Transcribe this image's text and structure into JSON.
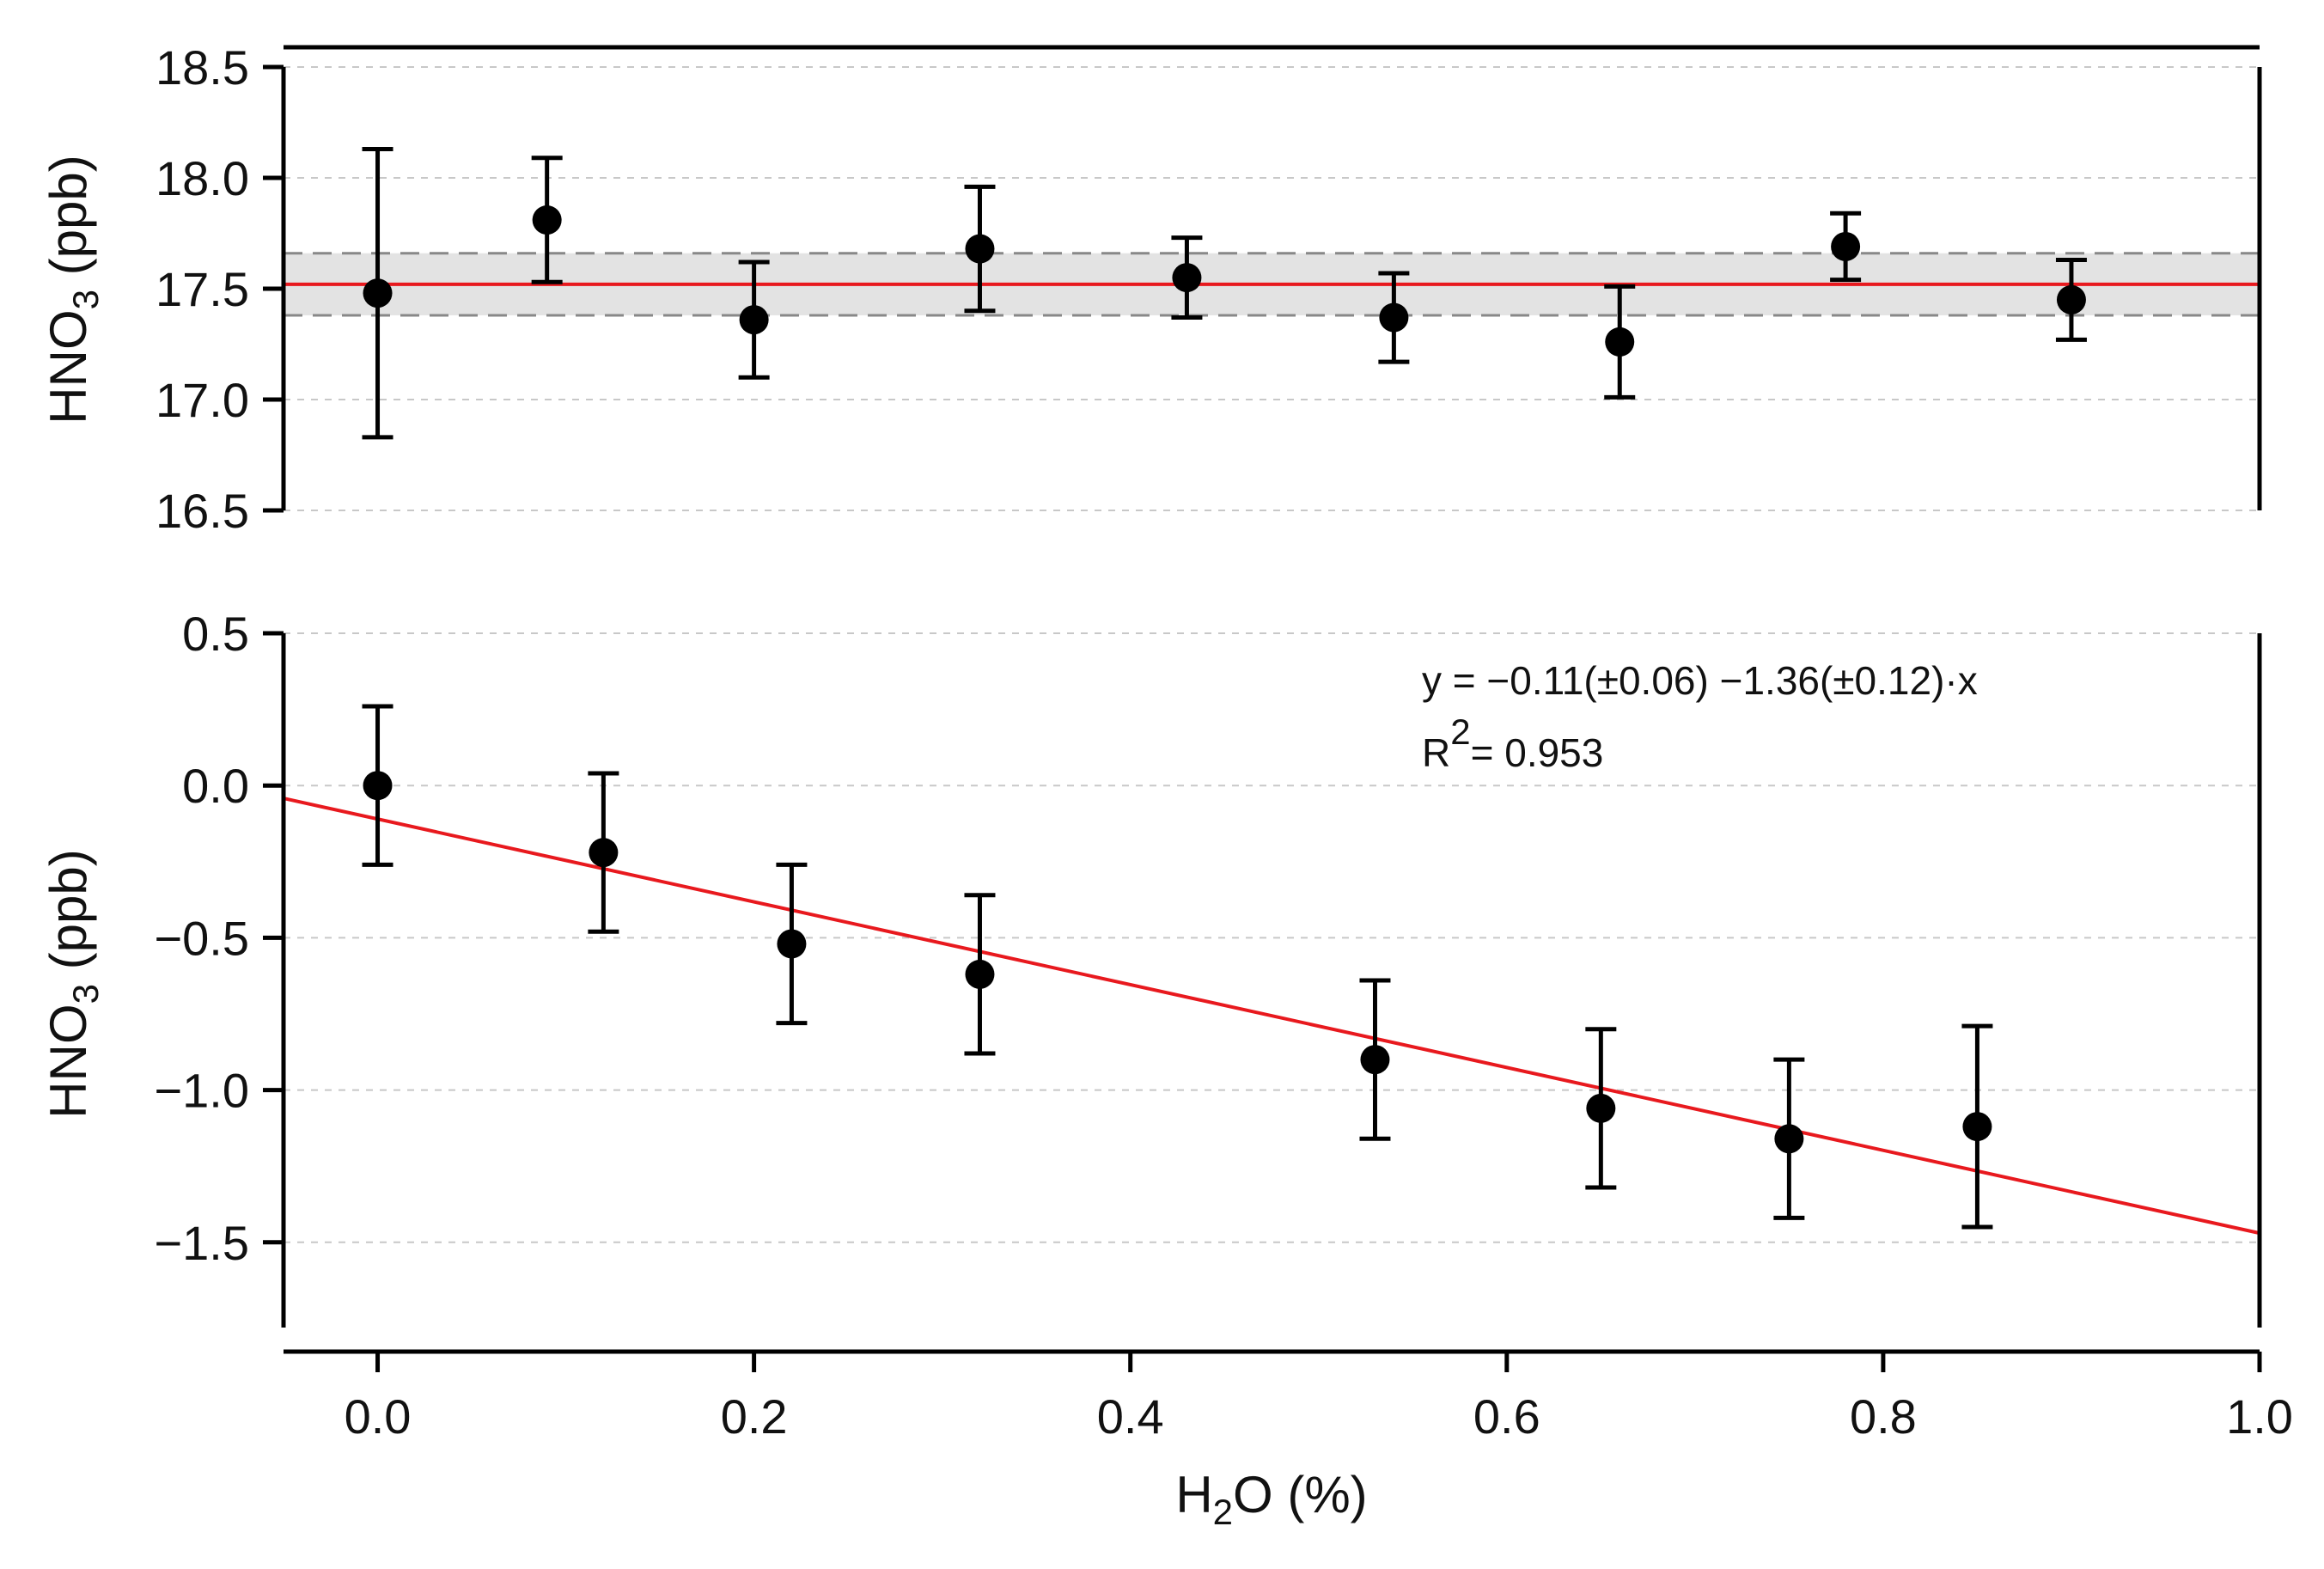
{
  "chart_data": [
    {
      "type": "scatter",
      "panel": "top",
      "ylabel": {
        "main": "HNO",
        "sub": "3",
        "unit": " (ppb)"
      },
      "ylim": [
        16.5,
        18.5
      ],
      "xlim": [
        -0.05,
        1.0
      ],
      "yticks": [
        16.5,
        17.0,
        17.5,
        18.0,
        18.5
      ],
      "ytick_labels": [
        "16.5",
        "17.0",
        "17.5",
        "18.0",
        "18.5"
      ],
      "grid": true,
      "series": [
        {
          "name": "HNO3",
          "x": [
            0.0,
            0.09,
            0.2,
            0.32,
            0.43,
            0.54,
            0.66,
            0.78,
            0.9
          ],
          "y": [
            17.48,
            17.81,
            17.36,
            17.68,
            17.55,
            17.37,
            17.26,
            17.69,
            17.45
          ],
          "err": [
            0.65,
            0.28,
            0.26,
            0.28,
            0.18,
            0.2,
            0.25,
            0.15,
            0.18
          ]
        }
      ],
      "mean_line": {
        "y": 17.52,
        "color": "#e8191e"
      },
      "band": {
        "lower": 17.38,
        "upper": 17.66
      }
    },
    {
      "type": "scatter",
      "panel": "bottom",
      "ylabel": {
        "main": "HNO",
        "sub": "3",
        "unit": " (ppb)"
      },
      "xlabel": {
        "main": "H",
        "sub": "2",
        "rest": "O (%)"
      },
      "ylim": [
        -1.78,
        0.5
      ],
      "xlim": [
        -0.05,
        1.0
      ],
      "yticks": [
        0.5,
        0.0,
        -0.5,
        -1.0,
        -1.5
      ],
      "ytick_labels": [
        "0.5",
        "0.0",
        "−0.5",
        "−1.0",
        "−1.5"
      ],
      "xticks": [
        0.0,
        0.2,
        0.4,
        0.6,
        0.8,
        1.0
      ],
      "xtick_labels": [
        "0.0",
        "0.2",
        "0.4",
        "0.6",
        "0.8",
        "1.0"
      ],
      "grid": true,
      "series": [
        {
          "name": "HNO3",
          "x": [
            0.0,
            0.12,
            0.22,
            0.32,
            0.53,
            0.65,
            0.75,
            0.85
          ],
          "y": [
            0.0,
            -0.22,
            -0.52,
            -0.62,
            -0.9,
            -1.06,
            -1.16,
            -1.12
          ],
          "err": [
            0.26,
            0.26,
            0.26,
            0.26,
            0.26,
            0.26,
            0.26,
            0.33
          ]
        }
      ],
      "fit": {
        "intercept": -0.11,
        "slope": -1.36,
        "color": "#e8191e"
      },
      "annotation": {
        "equation": "y = −0.11(±0.06) −1.36(±0.12)·x",
        "r2_label": "R",
        "r2_sup": "2",
        "r2_value": "= 0.953"
      }
    }
  ]
}
